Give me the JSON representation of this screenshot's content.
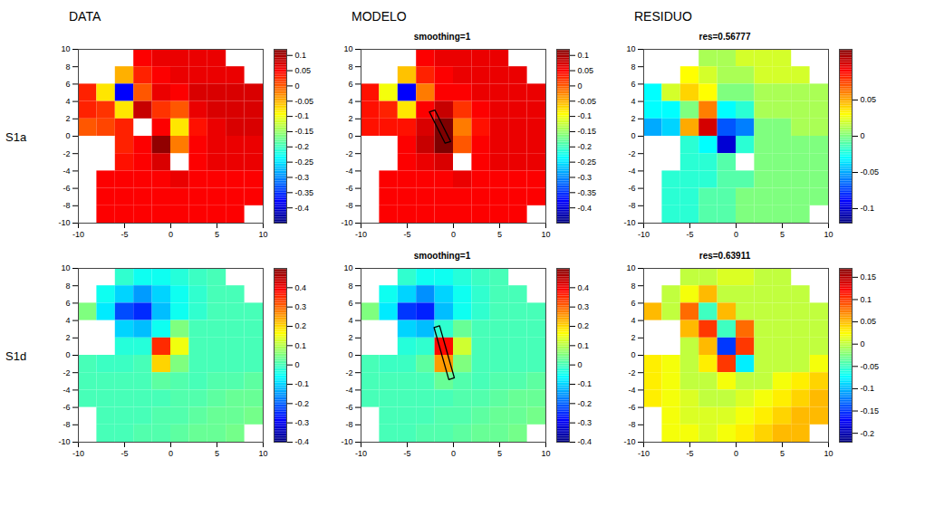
{
  "column_headers": [
    "DATA",
    "MODELO",
    "RESIDUO"
  ],
  "row_labels": [
    "S1a",
    "S1d"
  ],
  "chart_data": [
    {
      "type": "heatmap",
      "xlim": [
        -10,
        10
      ],
      "ylim": [
        -10,
        10
      ],
      "xticks": [
        -10,
        -5,
        0,
        5,
        10
      ],
      "yticks": [
        -10,
        -8,
        -6,
        -4,
        -2,
        0,
        2,
        4,
        6,
        8,
        10
      ],
      "x": [
        -9,
        -7,
        -5,
        -3,
        -1,
        1,
        3,
        5,
        7,
        9
      ],
      "y": [
        9,
        7,
        5,
        3,
        1,
        -1,
        -3,
        -5,
        -7,
        -9
      ],
      "cells": [
        [
          null,
          null,
          null,
          0.05,
          0.06,
          0.06,
          0.06,
          0.06,
          null,
          null
        ],
        [
          null,
          null,
          -0.05,
          0.03,
          0.05,
          0.06,
          0.06,
          0.06,
          0.06,
          null
        ],
        [
          0.03,
          -0.08,
          -0.38,
          0.0,
          0.06,
          0.05,
          0.07,
          0.07,
          0.07,
          0.07
        ],
        [
          0.03,
          0.02,
          -0.08,
          0.08,
          0.02,
          0.0,
          0.06,
          0.07,
          0.07,
          0.07
        ],
        [
          0.0,
          0.01,
          0.03,
          null,
          0.05,
          -0.08,
          0.04,
          0.06,
          0.07,
          0.07
        ],
        [
          null,
          null,
          0.03,
          0.05,
          0.11,
          -0.02,
          0.05,
          0.06,
          0.06,
          0.06
        ],
        [
          null,
          null,
          0.04,
          0.05,
          0.07,
          null,
          0.05,
          0.06,
          0.06,
          0.06
        ],
        [
          null,
          0.05,
          0.05,
          0.05,
          0.05,
          0.06,
          0.05,
          0.05,
          0.05,
          0.05
        ],
        [
          null,
          0.05,
          0.05,
          0.05,
          0.05,
          0.05,
          0.05,
          0.05,
          0.05,
          0.05
        ],
        [
          null,
          0.05,
          0.05,
          0.05,
          0.05,
          0.05,
          0.05,
          0.05,
          0.05,
          null
        ]
      ],
      "color_range": [
        -0.45,
        0.12
      ],
      "color_ticks": [
        -0.4,
        -0.35,
        -0.3,
        -0.25,
        -0.2,
        -0.15,
        -0.1,
        -0.05,
        0,
        0.05,
        0.1
      ]
    },
    {
      "type": "heatmap",
      "title": "smoothing=1",
      "xlim": [
        -10,
        10
      ],
      "ylim": [
        -10,
        10
      ],
      "xticks": [
        -10,
        -5,
        0,
        5,
        10
      ],
      "yticks": [
        -10,
        -8,
        -6,
        -4,
        -2,
        0,
        2,
        4,
        6,
        8,
        10
      ],
      "x": [
        -9,
        -7,
        -5,
        -3,
        -1,
        1,
        3,
        5,
        7,
        9
      ],
      "y": [
        9,
        7,
        5,
        3,
        1,
        -1,
        -3,
        -5,
        -7,
        -9
      ],
      "cells": [
        [
          null,
          null,
          null,
          0.05,
          0.06,
          0.06,
          0.06,
          0.06,
          null,
          null
        ],
        [
          null,
          null,
          -0.06,
          0.03,
          0.05,
          0.06,
          0.06,
          0.06,
          0.06,
          null
        ],
        [
          0.04,
          -0.1,
          -0.38,
          -0.02,
          0.05,
          0.05,
          0.06,
          0.06,
          0.06,
          0.06
        ],
        [
          0.04,
          0.03,
          -0.08,
          0.05,
          0.08,
          0.02,
          0.05,
          0.06,
          0.06,
          0.06
        ],
        [
          0.04,
          0.04,
          0.04,
          0.07,
          0.12,
          -0.02,
          0.04,
          0.06,
          0.06,
          0.06
        ],
        [
          null,
          null,
          0.05,
          0.08,
          0.12,
          0.0,
          0.05,
          0.06,
          0.06,
          0.06
        ],
        [
          null,
          null,
          0.05,
          0.06,
          0.07,
          null,
          0.05,
          0.06,
          0.06,
          0.06
        ],
        [
          null,
          0.05,
          0.05,
          0.05,
          0.05,
          0.06,
          0.05,
          0.05,
          0.05,
          0.05
        ],
        [
          null,
          0.05,
          0.05,
          0.05,
          0.05,
          0.05,
          0.05,
          0.05,
          0.05,
          0.05
        ],
        [
          null,
          0.05,
          0.05,
          0.05,
          0.05,
          0.05,
          0.05,
          0.05,
          0.05,
          null
        ]
      ],
      "fault": [
        [
          -2.6,
          2.8
        ],
        [
          -2.0,
          3.0
        ],
        [
          -0.3,
          -0.6
        ],
        [
          -0.9,
          -0.8
        ]
      ],
      "color_range": [
        -0.45,
        0.12
      ],
      "color_ticks": [
        -0.4,
        -0.35,
        -0.3,
        -0.25,
        -0.2,
        -0.15,
        -0.1,
        -0.05,
        0,
        0.05,
        0.1
      ]
    },
    {
      "type": "heatmap",
      "title": "res=0.56777",
      "xlim": [
        -10,
        10
      ],
      "ylim": [
        -10,
        10
      ],
      "xticks": [
        -10,
        -5,
        0,
        5,
        10
      ],
      "yticks": [
        -10,
        -8,
        -6,
        -4,
        -2,
        0,
        2,
        4,
        6,
        8,
        10
      ],
      "x": [
        -9,
        -7,
        -5,
        -3,
        -1,
        1,
        3,
        5,
        7,
        9
      ],
      "y": [
        9,
        7,
        5,
        3,
        1,
        -1,
        -3,
        -5,
        -7,
        -9
      ],
      "cells": [
        [
          null,
          null,
          null,
          0.01,
          0.01,
          0.02,
          0.02,
          0.02,
          null,
          null
        ],
        [
          null,
          null,
          0.03,
          0.02,
          0.01,
          0.01,
          0.02,
          0.02,
          0.02,
          null
        ],
        [
          -0.03,
          0.02,
          0.04,
          0.03,
          0.0,
          0.0,
          0.01,
          0.01,
          0.01,
          0.01
        ],
        [
          -0.03,
          -0.03,
          0.0,
          0.06,
          -0.03,
          -0.02,
          0.01,
          0.01,
          0.01,
          0.01
        ],
        [
          -0.05,
          -0.04,
          0.05,
          0.1,
          -0.07,
          -0.06,
          0.0,
          0.0,
          0.01,
          0.01
        ],
        [
          null,
          null,
          -0.02,
          -0.03,
          -0.1,
          -0.02,
          0.0,
          0.0,
          0.0,
          0.0
        ],
        [
          null,
          null,
          -0.02,
          -0.02,
          -0.01,
          null,
          0.0,
          0.0,
          0.0,
          0.0
        ],
        [
          null,
          -0.02,
          -0.02,
          -0.02,
          -0.01,
          -0.01,
          0.0,
          0.0,
          0.0,
          0.0
        ],
        [
          null,
          -0.02,
          -0.02,
          -0.01,
          -0.01,
          0.0,
          0.0,
          0.0,
          0.0,
          0.0
        ],
        [
          null,
          -0.02,
          -0.02,
          -0.01,
          -0.01,
          0.0,
          0.0,
          0.0,
          0.0,
          null
        ]
      ],
      "color_range": [
        -0.12,
        0.12
      ],
      "color_ticks": [
        -0.1,
        -0.05,
        0,
        0.05
      ]
    },
    {
      "type": "heatmap",
      "xlim": [
        -10,
        10
      ],
      "ylim": [
        -10,
        10
      ],
      "xticks": [
        -10,
        -5,
        0,
        5,
        10
      ],
      "yticks": [
        -10,
        -8,
        -6,
        -4,
        -2,
        0,
        2,
        4,
        6,
        8,
        10
      ],
      "x": [
        -9,
        -7,
        -5,
        -3,
        -1,
        1,
        3,
        5,
        7,
        9
      ],
      "y": [
        9,
        7,
        5,
        3,
        1,
        -1,
        -3,
        -5,
        -7,
        -9
      ],
      "cells": [
        [
          null,
          null,
          -0.02,
          -0.05,
          -0.05,
          -0.03,
          -0.01,
          0.0,
          null,
          null
        ],
        [
          null,
          -0.05,
          -0.1,
          -0.15,
          -0.1,
          -0.05,
          -0.02,
          0.0,
          0.0,
          null
        ],
        [
          0.05,
          -0.08,
          -0.22,
          -0.25,
          -0.12,
          -0.05,
          -0.02,
          0.0,
          0.0,
          0.0
        ],
        [
          null,
          null,
          -0.1,
          -0.12,
          -0.05,
          0.05,
          0.0,
          0.0,
          0.0,
          0.0
        ],
        [
          null,
          null,
          -0.03,
          -0.03,
          0.35,
          0.15,
          0.0,
          0.0,
          0.0,
          0.0
        ],
        [
          0.0,
          -0.01,
          -0.01,
          0.0,
          0.2,
          0.05,
          0.0,
          0.0,
          0.0,
          0.0
        ],
        [
          0.0,
          0.0,
          0.0,
          0.0,
          0.02,
          0.01,
          0.0,
          0.01,
          0.01,
          0.02
        ],
        [
          0.0,
          0.0,
          0.0,
          0.0,
          0.0,
          0.01,
          0.01,
          0.02,
          0.03,
          0.03
        ],
        [
          null,
          0.0,
          0.0,
          0.0,
          0.01,
          0.01,
          0.02,
          0.03,
          0.03,
          0.04
        ],
        [
          null,
          0.0,
          0.0,
          0.01,
          0.01,
          0.02,
          0.03,
          0.03,
          0.04,
          null
        ]
      ],
      "color_range": [
        -0.4,
        0.5
      ],
      "color_ticks": [
        -0.4,
        -0.3,
        -0.2,
        -0.1,
        0,
        0.1,
        0.2,
        0.3,
        0.4
      ]
    },
    {
      "type": "heatmap",
      "title": "smoothing=1",
      "xlim": [
        -10,
        10
      ],
      "ylim": [
        -10,
        10
      ],
      "xticks": [
        -10,
        -5,
        0,
        5,
        10
      ],
      "yticks": [
        -10,
        -8,
        -6,
        -4,
        -2,
        0,
        2,
        4,
        6,
        8,
        10
      ],
      "x": [
        -9,
        -7,
        -5,
        -3,
        -1,
        1,
        3,
        5,
        7,
        9
      ],
      "y": [
        9,
        7,
        5,
        3,
        1,
        -1,
        -3,
        -5,
        -7,
        -9
      ],
      "cells": [
        [
          null,
          null,
          -0.02,
          -0.05,
          -0.05,
          -0.03,
          -0.01,
          0.0,
          null,
          null
        ],
        [
          null,
          -0.05,
          -0.1,
          -0.16,
          -0.1,
          -0.05,
          -0.02,
          0.0,
          0.0,
          null
        ],
        [
          0.05,
          -0.08,
          -0.24,
          -0.26,
          -0.12,
          -0.05,
          -0.02,
          0.0,
          0.0,
          0.0
        ],
        [
          null,
          null,
          -0.1,
          -0.12,
          -0.02,
          0.03,
          0.0,
          0.0,
          0.0,
          0.0
        ],
        [
          null,
          null,
          -0.03,
          -0.02,
          0.38,
          0.12,
          0.0,
          0.0,
          0.0,
          0.0
        ],
        [
          0.0,
          -0.01,
          -0.01,
          0.02,
          0.25,
          0.05,
          0.0,
          0.0,
          0.0,
          0.0
        ],
        [
          0.0,
          0.0,
          0.0,
          0.0,
          0.03,
          0.01,
          0.0,
          0.01,
          0.01,
          0.02
        ],
        [
          0.0,
          0.0,
          0.0,
          0.0,
          0.0,
          0.01,
          0.01,
          0.02,
          0.03,
          0.03
        ],
        [
          null,
          0.0,
          0.0,
          0.0,
          0.01,
          0.01,
          0.02,
          0.03,
          0.03,
          0.04
        ],
        [
          null,
          0.0,
          0.0,
          0.01,
          0.01,
          0.02,
          0.03,
          0.03,
          0.04,
          null
        ]
      ],
      "fault": [
        [
          -2.1,
          3.2
        ],
        [
          -1.5,
          3.4
        ],
        [
          0.1,
          -2.6
        ],
        [
          -0.5,
          -2.8
        ]
      ],
      "color_range": [
        -0.4,
        0.5
      ],
      "color_ticks": [
        -0.4,
        -0.3,
        -0.2,
        -0.1,
        0,
        0.1,
        0.2,
        0.3,
        0.4
      ]
    },
    {
      "type": "heatmap",
      "title": "res=0.63911",
      "xlim": [
        -10,
        10
      ],
      "ylim": [
        -10,
        10
      ],
      "xticks": [
        -10,
        -5,
        0,
        5,
        10
      ],
      "yticks": [
        -10,
        -8,
        -6,
        -4,
        -2,
        0,
        2,
        4,
        6,
        8,
        10
      ],
      "x": [
        -9,
        -7,
        -5,
        -3,
        -1,
        1,
        3,
        5,
        7,
        9
      ],
      "y": [
        9,
        7,
        5,
        3,
        1,
        -1,
        -3,
        -5,
        -7,
        -9
      ],
      "cells": [
        [
          null,
          null,
          0.0,
          0.0,
          0.01,
          0.01,
          0.0,
          0.0,
          null,
          null
        ],
        [
          null,
          0.0,
          0.02,
          0.05,
          0.0,
          0.0,
          0.0,
          0.0,
          0.0,
          null
        ],
        [
          0.05,
          0.0,
          0.08,
          -0.05,
          0.05,
          0.0,
          0.0,
          0.0,
          0.0,
          0.0
        ],
        [
          null,
          null,
          0.05,
          0.1,
          -0.05,
          0.08,
          0.0,
          0.0,
          0.0,
          0.0
        ],
        [
          null,
          null,
          0.0,
          0.05,
          -0.15,
          0.1,
          0.0,
          0.0,
          0.0,
          0.0
        ],
        [
          0.03,
          0.02,
          0.0,
          0.03,
          0.1,
          -0.08,
          0.0,
          0.0,
          0.0,
          0.02
        ],
        [
          0.03,
          0.02,
          0.0,
          0.0,
          0.02,
          0.0,
          0.0,
          0.02,
          0.03,
          0.04
        ],
        [
          0.03,
          0.02,
          0.01,
          0.0,
          0.0,
          0.01,
          0.02,
          0.03,
          0.04,
          0.05
        ],
        [
          null,
          0.02,
          0.01,
          0.01,
          0.01,
          0.02,
          0.03,
          0.04,
          0.05,
          0.05
        ],
        [
          null,
          0.02,
          0.02,
          0.01,
          0.02,
          0.03,
          0.04,
          0.05,
          0.05,
          null
        ]
      ],
      "color_range": [
        -0.22,
        0.17
      ],
      "color_ticks": [
        -0.2,
        -0.15,
        -0.1,
        -0.05,
        0,
        0.05,
        0.1,
        0.15
      ]
    }
  ]
}
